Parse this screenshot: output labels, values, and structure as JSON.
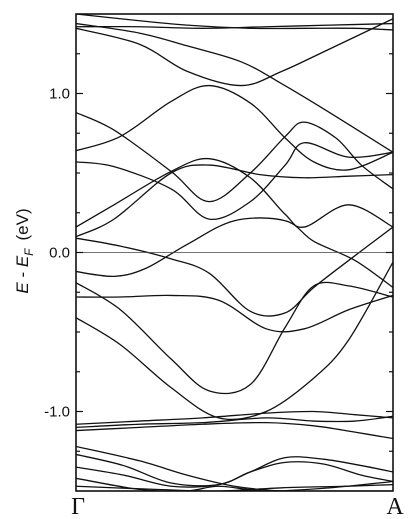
{
  "chart_data": {
    "type": "line",
    "title": "",
    "xlabel": "",
    "ylabel_parts": {
      "E": "E",
      "minus": " - ",
      "E2": "E",
      "sub": "F",
      "unit": "(eV)"
    },
    "x_tick_labels": [
      "Γ",
      "A"
    ],
    "x_range": [
      0,
      1
    ],
    "ylim": [
      -1.5,
      1.5
    ],
    "y_ticks": [
      {
        "value": 1.0,
        "label": "1.0"
      },
      {
        "value": 0.0,
        "label": "0.0"
      },
      {
        "value": -1.0,
        "label": "-1.0"
      }
    ],
    "minor_y_ticks": [
      -1.25,
      -0.75,
      -0.5,
      -0.25,
      0.25,
      0.5,
      0.75,
      1.25
    ],
    "fermi_level": 0.0,
    "grid": false,
    "bands": [
      {
        "x": [
          0,
          0.14,
          0.35,
          0.55,
          0.72,
          0.88,
          1.0
        ],
        "y": [
          1.5,
          1.47,
          1.43,
          1.41,
          1.41,
          1.41,
          1.4
        ]
      },
      {
        "x": [
          0,
          0.2,
          0.4,
          0.6,
          0.8,
          1.0
        ],
        "y": [
          1.42,
          1.42,
          1.41,
          1.42,
          1.43,
          1.44
        ]
      },
      {
        "x": [
          0,
          0.2,
          0.35,
          0.52,
          0.65,
          0.8,
          1.0
        ],
        "y": [
          1.41,
          1.31,
          1.14,
          1.05,
          1.14,
          1.28,
          1.47
        ]
      },
      {
        "x": [
          0,
          0.2,
          0.35,
          0.52,
          0.65,
          0.8,
          1.0
        ],
        "y": [
          1.44,
          1.38,
          1.3,
          1.2,
          1.06,
          0.88,
          0.63
        ]
      },
      {
        "x": [
          0,
          0.14,
          0.3,
          0.42,
          0.55,
          0.66,
          0.75,
          0.86,
          1.0
        ],
        "y": [
          0.64,
          0.73,
          0.95,
          1.05,
          0.94,
          0.72,
          0.57,
          0.52,
          0.63
        ]
      },
      {
        "x": [
          0,
          0.12,
          0.3,
          0.42,
          0.55,
          0.66,
          0.72,
          0.86,
          1.0
        ],
        "y": [
          0.57,
          0.54,
          0.4,
          0.21,
          0.32,
          0.55,
          0.69,
          0.6,
          0.63
        ]
      },
      {
        "x": [
          0,
          0.12,
          0.3,
          0.42,
          0.55,
          0.66,
          0.72,
          0.82,
          0.9,
          1.0
        ],
        "y": [
          0.88,
          0.77,
          0.51,
          0.32,
          0.5,
          0.73,
          0.82,
          0.72,
          0.55,
          0.4
        ]
      },
      {
        "x": [
          0,
          0.12,
          0.3,
          0.42,
          0.58,
          0.72,
          0.86,
          1.0
        ],
        "y": [
          0.1,
          0.21,
          0.5,
          0.55,
          0.49,
          0.47,
          0.48,
          0.49
        ]
      },
      {
        "x": [
          0,
          0.12,
          0.3,
          0.42,
          0.55,
          0.66,
          0.72,
          0.86,
          1.0
        ],
        "y": [
          0.16,
          0.3,
          0.51,
          0.59,
          0.47,
          0.24,
          0.16,
          0.3,
          0.16
        ]
      },
      {
        "x": [
          0,
          0.14,
          0.3,
          0.42,
          0.55,
          0.66,
          0.75,
          0.88,
          1.0
        ],
        "y": [
          0.09,
          0.04,
          -0.04,
          -0.13,
          -0.37,
          -0.38,
          -0.22,
          -0.02,
          0.16
        ]
      },
      {
        "x": [
          0,
          0.12,
          0.22,
          0.35,
          0.5,
          0.66,
          0.75,
          0.88,
          1.0
        ],
        "y": [
          -0.12,
          -0.15,
          -0.1,
          0.05,
          0.2,
          0.2,
          0.07,
          -0.05,
          -0.22
        ]
      },
      {
        "x": [
          0,
          0.14,
          0.3,
          0.45,
          0.6,
          0.72,
          0.86,
          1.0
        ],
        "y": [
          -0.28,
          -0.28,
          -0.27,
          -0.3,
          -0.48,
          -0.48,
          -0.36,
          -0.27
        ]
      },
      {
        "x": [
          0,
          0.14,
          0.3,
          0.42,
          0.55,
          0.66,
          0.75,
          0.86,
          1.0
        ],
        "y": [
          -0.19,
          -0.36,
          -0.67,
          -0.87,
          -0.83,
          -0.47,
          -0.21,
          -0.21,
          -0.28
        ]
      },
      {
        "x": [
          0,
          0.14,
          0.3,
          0.45,
          0.6,
          0.75,
          0.86,
          1.0
        ],
        "y": [
          -0.41,
          -0.58,
          -0.85,
          -1.04,
          -1.0,
          -0.79,
          -0.55,
          -0.06
        ]
      },
      {
        "x": [
          0,
          0.2,
          0.4,
          0.6,
          0.75,
          0.88,
          1.0
        ],
        "y": [
          -1.08,
          -1.06,
          -1.04,
          -1.01,
          -1.0,
          -1.02,
          -1.04
        ]
      },
      {
        "x": [
          0,
          0.2,
          0.4,
          0.6,
          0.75,
          0.88,
          1.0
        ],
        "y": [
          -1.1,
          -1.08,
          -1.07,
          -1.04,
          -1.06,
          -1.06,
          -1.03
        ]
      },
      {
        "x": [
          0,
          0.2,
          0.4,
          0.6,
          0.75,
          0.88,
          1.0
        ],
        "y": [
          -1.12,
          -1.1,
          -1.08,
          -1.07,
          -1.09,
          -1.13,
          -1.17
        ]
      },
      {
        "x": [
          0,
          0.2,
          0.35,
          0.5,
          0.65,
          0.8,
          1.0
        ],
        "y": [
          -1.22,
          -1.31,
          -1.4,
          -1.47,
          -1.5,
          -1.5,
          -1.5
        ]
      },
      {
        "x": [
          0,
          0.15,
          0.3,
          0.45,
          0.55,
          0.66,
          0.78,
          0.9,
          1.0
        ],
        "y": [
          -1.27,
          -1.34,
          -1.45,
          -1.46,
          -1.38,
          -1.32,
          -1.33,
          -1.4,
          -1.44
        ]
      },
      {
        "x": [
          0,
          0.15,
          0.3,
          0.45,
          0.55,
          0.66,
          0.78,
          0.9,
          1.0
        ],
        "y": [
          -1.35,
          -1.4,
          -1.47,
          -1.46,
          -1.38,
          -1.29,
          -1.3,
          -1.34,
          -1.38
        ]
      },
      {
        "x": [
          0,
          0.2,
          0.35,
          0.45,
          0.6,
          0.8,
          1.0
        ],
        "y": [
          -1.42,
          -1.49,
          -1.5,
          -1.47,
          -1.5,
          -1.48,
          -1.44
        ]
      },
      {
        "x": [
          0,
          0.25,
          0.45,
          0.65,
          0.85,
          1.0
        ],
        "y": [
          -1.47,
          -1.49,
          -1.5,
          -1.48,
          -1.47,
          -1.46
        ]
      }
    ]
  }
}
